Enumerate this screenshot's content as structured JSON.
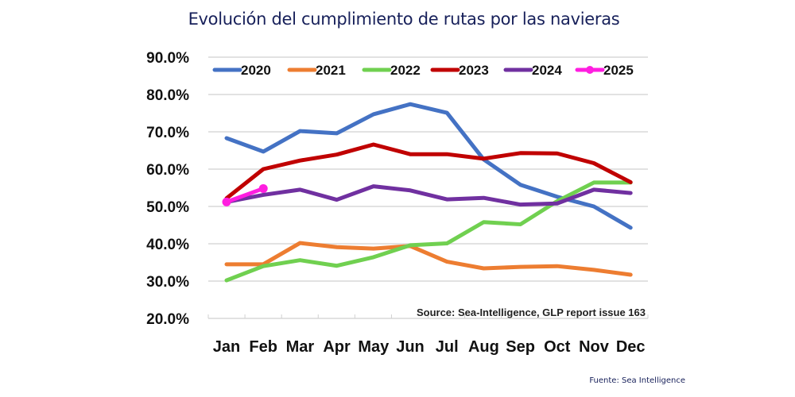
{
  "chart_data": {
    "type": "line",
    "title": "Evolución del cumplimiento de rutas por las navieras",
    "xlabel": "",
    "ylabel": "",
    "categories": [
      "Jan",
      "Feb",
      "Mar",
      "Apr",
      "May",
      "Jun",
      "Jul",
      "Aug",
      "Sep",
      "Oct",
      "Nov",
      "Dec"
    ],
    "ylim": [
      20,
      90
    ],
    "yticks": [
      20,
      30,
      40,
      50,
      60,
      70,
      80,
      90
    ],
    "ytick_labels": [
      "20.0%",
      "30.0%",
      "40.0%",
      "50.0%",
      "60.0%",
      "70.0%",
      "80.0%",
      "90.0%"
    ],
    "grid": true,
    "legend_position": "top",
    "series": [
      {
        "name": "2020",
        "color": "#4472c4",
        "markers": false,
        "values": [
          68.3,
          64.7,
          70.2,
          69.6,
          74.7,
          77.4,
          75.1,
          62.6,
          55.8,
          52.6,
          50.0,
          44.3
        ]
      },
      {
        "name": "2021",
        "color": "#ed7d31",
        "markers": false,
        "values": [
          34.5,
          34.5,
          40.2,
          39.1,
          38.7,
          39.4,
          35.2,
          33.4,
          33.8,
          34.0,
          33.0,
          31.7
        ]
      },
      {
        "name": "2022",
        "color": "#70d050",
        "markers": false,
        "values": [
          30.2,
          34.0,
          35.6,
          34.1,
          36.4,
          39.6,
          40.1,
          45.8,
          45.2,
          51.4,
          56.4,
          56.4
        ]
      },
      {
        "name": "2023",
        "color": "#c00000",
        "markers": false,
        "values": [
          52.2,
          60.0,
          62.3,
          63.9,
          66.6,
          64.0,
          64.0,
          62.8,
          64.3,
          64.2,
          61.6,
          56.5
        ]
      },
      {
        "name": "2024",
        "color": "#7030a0",
        "markers": false,
        "values": [
          51.2,
          53.1,
          54.5,
          51.8,
          55.4,
          54.3,
          51.9,
          52.3,
          50.5,
          50.8,
          54.5,
          53.6
        ]
      },
      {
        "name": "2025",
        "color": "#ff1ee0",
        "markers": true,
        "values": [
          51.2,
          54.8
        ]
      }
    ],
    "annotations": [
      "Source: Sea-Intelligence, GLP report issue 163"
    ]
  },
  "footer": "Fuente: Sea Intelligence"
}
